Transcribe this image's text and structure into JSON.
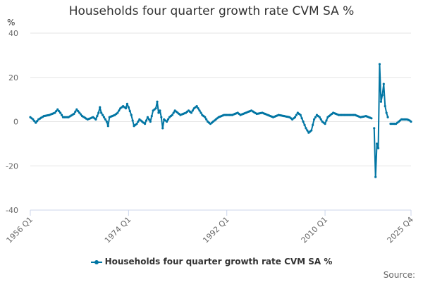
{
  "colors": {
    "series": "#0075a3",
    "grid": "#e6e6e6",
    "axis": "#ccd6eb"
  },
  "source_label": "Source:",
  "chart_data": {
    "type": "line",
    "title": "Households four quarter growth rate CVM SA %",
    "ylabel": "%",
    "xlabel": "",
    "ylim": [
      -40,
      40
    ],
    "yticks": [
      40,
      20,
      0,
      -20,
      -40
    ],
    "x_tick_labels": [
      "1956 Q1",
      "1974 Q1",
      "1992 Q1",
      "2010 Q1",
      "2025 Q4"
    ],
    "x_tick_index": [
      0,
      72,
      144,
      216,
      279
    ],
    "start_period": "1956 Q1",
    "end_period": "2025 Q4",
    "legend_position": "bottom-center",
    "series": [
      {
        "name": "Households four quarter growth rate CVM SA %",
        "keypoints": [
          [
            0,
            2
          ],
          [
            2,
            1
          ],
          [
            4,
            -0.5
          ],
          [
            6,
            1
          ],
          [
            10,
            2.5
          ],
          [
            14,
            3
          ],
          [
            18,
            4
          ],
          [
            20,
            5.5
          ],
          [
            22,
            4
          ],
          [
            24,
            2
          ],
          [
            28,
            2
          ],
          [
            32,
            3.5
          ],
          [
            34,
            5.5
          ],
          [
            36,
            4
          ],
          [
            38,
            2.5
          ],
          [
            42,
            1
          ],
          [
            46,
            2
          ],
          [
            48,
            1
          ],
          [
            50,
            4
          ],
          [
            51,
            6.5
          ],
          [
            52,
            4
          ],
          [
            54,
            2
          ],
          [
            56,
            0
          ],
          [
            57,
            -2
          ],
          [
            58,
            2
          ],
          [
            62,
            3
          ],
          [
            64,
            4
          ],
          [
            66,
            6
          ],
          [
            68,
            7
          ],
          [
            70,
            6
          ],
          [
            71,
            8
          ],
          [
            72,
            6.5
          ],
          [
            74,
            3
          ],
          [
            76,
            -2
          ],
          [
            78,
            -1
          ],
          [
            80,
            1
          ],
          [
            82,
            0
          ],
          [
            84,
            -1
          ],
          [
            86,
            2
          ],
          [
            88,
            0
          ],
          [
            90,
            5
          ],
          [
            92,
            6
          ],
          [
            93,
            9
          ],
          [
            94,
            4
          ],
          [
            95,
            5
          ],
          [
            96,
            2
          ],
          [
            97,
            -3
          ],
          [
            98,
            1
          ],
          [
            100,
            0
          ],
          [
            102,
            2
          ],
          [
            104,
            3
          ],
          [
            106,
            5
          ],
          [
            110,
            3
          ],
          [
            114,
            4
          ],
          [
            116,
            5
          ],
          [
            118,
            4
          ],
          [
            120,
            6
          ],
          [
            122,
            7
          ],
          [
            124,
            5
          ],
          [
            126,
            3
          ],
          [
            128,
            2
          ],
          [
            130,
            0
          ],
          [
            132,
            -1
          ],
          [
            134,
            0
          ],
          [
            138,
            2
          ],
          [
            142,
            3
          ],
          [
            144,
            3
          ],
          [
            148,
            3
          ],
          [
            152,
            4
          ],
          [
            154,
            3
          ],
          [
            158,
            4
          ],
          [
            162,
            5
          ],
          [
            166,
            3.5
          ],
          [
            170,
            4
          ],
          [
            174,
            3
          ],
          [
            178,
            2
          ],
          [
            182,
            3
          ],
          [
            186,
            2.5
          ],
          [
            190,
            2
          ],
          [
            192,
            1
          ],
          [
            194,
            2
          ],
          [
            196,
            4
          ],
          [
            198,
            3
          ],
          [
            200,
            0
          ],
          [
            202,
            -3
          ],
          [
            204,
            -5
          ],
          [
            206,
            -4
          ],
          [
            208,
            1
          ],
          [
            210,
            3
          ],
          [
            212,
            2
          ],
          [
            214,
            0
          ],
          [
            216,
            -1
          ],
          [
            218,
            2
          ],
          [
            220,
            3
          ],
          [
            222,
            4
          ],
          [
            226,
            3
          ],
          [
            230,
            3
          ],
          [
            234,
            3
          ],
          [
            238,
            3
          ],
          [
            242,
            2
          ],
          [
            246,
            2.5
          ],
          [
            248,
            2
          ],
          [
            250,
            1.5
          ],
          [
            252,
            -3
          ],
          [
            253,
            -25
          ],
          [
            254,
            -10
          ],
          [
            255,
            -12
          ],
          [
            256,
            26
          ],
          [
            257,
            9
          ],
          [
            258,
            12
          ],
          [
            259,
            17
          ],
          [
            260,
            7
          ],
          [
            261,
            4
          ],
          [
            262,
            2
          ],
          [
            264,
            -1
          ],
          [
            266,
            -1
          ],
          [
            268,
            -1
          ],
          [
            270,
            0
          ],
          [
            272,
            1
          ],
          [
            274,
            1
          ],
          [
            276,
            1
          ],
          [
            278,
            0.5
          ],
          [
            279,
            0
          ]
        ]
      }
    ]
  }
}
